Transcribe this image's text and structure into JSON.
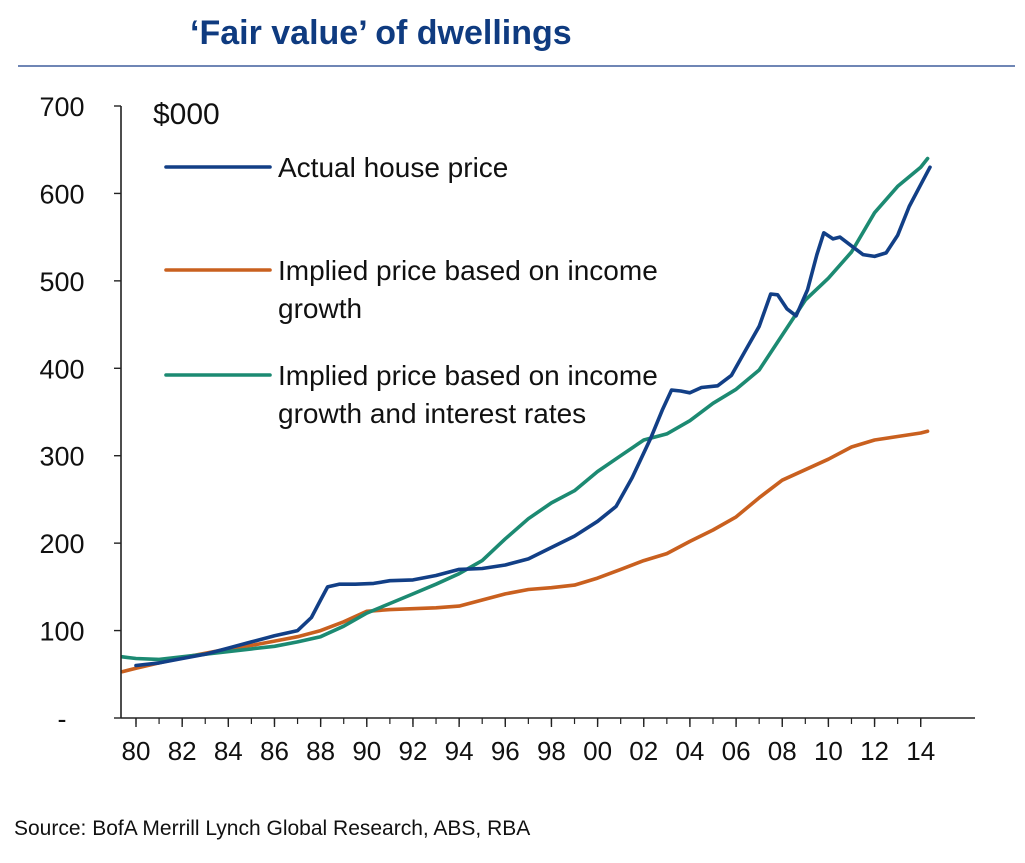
{
  "header": {
    "title": "‘Fair value’ of dwellings"
  },
  "footer": {
    "source": "Source: BofA Merrill Lynch Global Research,  ABS, RBA"
  },
  "chart_data": {
    "type": "line",
    "unit_label": "$000",
    "ylim": [
      0,
      700
    ],
    "y_ticks": [
      {
        "value": 0,
        "label": "-"
      },
      {
        "value": 100,
        "label": "100"
      },
      {
        "value": 200,
        "label": "200"
      },
      {
        "value": 300,
        "label": "300"
      },
      {
        "value": 400,
        "label": "400"
      },
      {
        "value": 500,
        "label": "500"
      },
      {
        "value": 600,
        "label": "600"
      },
      {
        "value": 700,
        "label": "700"
      }
    ],
    "xlim": [
      1979.4,
      2014.9
    ],
    "x_ticks": [
      {
        "value": 1980,
        "label": "80"
      },
      {
        "value": 1982,
        "label": "82"
      },
      {
        "value": 1984,
        "label": "84"
      },
      {
        "value": 1986,
        "label": "86"
      },
      {
        "value": 1988,
        "label": "88"
      },
      {
        "value": 1990,
        "label": "90"
      },
      {
        "value": 1992,
        "label": "92"
      },
      {
        "value": 1994,
        "label": "94"
      },
      {
        "value": 1996,
        "label": "96"
      },
      {
        "value": 1998,
        "label": "98"
      },
      {
        "value": 2000,
        "label": "00"
      },
      {
        "value": 2002,
        "label": "02"
      },
      {
        "value": 2004,
        "label": "04"
      },
      {
        "value": 2006,
        "label": "06"
      },
      {
        "value": 2008,
        "label": "08"
      },
      {
        "value": 2010,
        "label": "10"
      },
      {
        "value": 2012,
        "label": "12"
      },
      {
        "value": 2014,
        "label": "14"
      }
    ],
    "grid": false,
    "legend_position": "top-left",
    "series": [
      {
        "name": "Actual house price",
        "color": "#123f86",
        "points": [
          [
            1980.0,
            60
          ],
          [
            1981.0,
            63
          ],
          [
            1982.0,
            68
          ],
          [
            1983.0,
            73
          ],
          [
            1984.0,
            80
          ],
          [
            1985.0,
            87
          ],
          [
            1986.0,
            94
          ],
          [
            1987.0,
            100
          ],
          [
            1987.6,
            115
          ],
          [
            1988.0,
            135
          ],
          [
            1988.3,
            150
          ],
          [
            1988.8,
            153
          ],
          [
            1989.5,
            153
          ],
          [
            1990.3,
            154
          ],
          [
            1991.0,
            157
          ],
          [
            1992.0,
            158
          ],
          [
            1993.0,
            163
          ],
          [
            1994.0,
            170
          ],
          [
            1995.0,
            171
          ],
          [
            1996.0,
            175
          ],
          [
            1997.0,
            182
          ],
          [
            1998.0,
            195
          ],
          [
            1999.0,
            208
          ],
          [
            2000.0,
            225
          ],
          [
            2000.8,
            242
          ],
          [
            2001.5,
            275
          ],
          [
            2002.3,
            320
          ],
          [
            2002.8,
            352
          ],
          [
            2003.2,
            375
          ],
          [
            2003.6,
            374
          ],
          [
            2004.0,
            372
          ],
          [
            2004.5,
            378
          ],
          [
            2005.2,
            380
          ],
          [
            2005.8,
            392
          ],
          [
            2006.4,
            420
          ],
          [
            2007.0,
            448
          ],
          [
            2007.5,
            485
          ],
          [
            2007.8,
            484
          ],
          [
            2008.2,
            468
          ],
          [
            2008.6,
            460
          ],
          [
            2009.1,
            490
          ],
          [
            2009.5,
            530
          ],
          [
            2009.8,
            555
          ],
          [
            2010.2,
            548
          ],
          [
            2010.5,
            550
          ],
          [
            2011.0,
            540
          ],
          [
            2011.5,
            530
          ],
          [
            2012.0,
            528
          ],
          [
            2012.5,
            532
          ],
          [
            2013.0,
            552
          ],
          [
            2013.5,
            585
          ],
          [
            2014.0,
            610
          ],
          [
            2014.4,
            630
          ]
        ]
      },
      {
        "name": "Implied price based on income growth",
        "color": "#c9601f",
        "points": [
          [
            1979.4,
            53
          ],
          [
            1980.0,
            57
          ],
          [
            1981.0,
            63
          ],
          [
            1982.0,
            69
          ],
          [
            1983.0,
            74
          ],
          [
            1984.0,
            79
          ],
          [
            1985.0,
            83
          ],
          [
            1986.0,
            88
          ],
          [
            1987.0,
            93
          ],
          [
            1988.0,
            100
          ],
          [
            1989.0,
            110
          ],
          [
            1990.0,
            122
          ],
          [
            1991.0,
            124
          ],
          [
            1992.0,
            125
          ],
          [
            1993.0,
            126
          ],
          [
            1994.0,
            128
          ],
          [
            1995.0,
            135
          ],
          [
            1996.0,
            142
          ],
          [
            1997.0,
            147
          ],
          [
            1998.0,
            149
          ],
          [
            1999.0,
            152
          ],
          [
            2000.0,
            160
          ],
          [
            2001.0,
            170
          ],
          [
            2002.0,
            180
          ],
          [
            2003.0,
            188
          ],
          [
            2004.0,
            202
          ],
          [
            2005.0,
            215
          ],
          [
            2006.0,
            230
          ],
          [
            2007.0,
            252
          ],
          [
            2008.0,
            272
          ],
          [
            2009.0,
            284
          ],
          [
            2010.0,
            296
          ],
          [
            2011.0,
            310
          ],
          [
            2012.0,
            318
          ],
          [
            2013.0,
            322
          ],
          [
            2014.0,
            326
          ],
          [
            2014.3,
            328
          ]
        ]
      },
      {
        "name": "Implied price based on income growth and interest rates",
        "color": "#1c8a72",
        "points": [
          [
            1979.4,
            70
          ],
          [
            1980.0,
            68
          ],
          [
            1981.0,
            67
          ],
          [
            1982.0,
            70
          ],
          [
            1983.0,
            73
          ],
          [
            1984.0,
            76
          ],
          [
            1985.0,
            79
          ],
          [
            1986.0,
            82
          ],
          [
            1987.0,
            87
          ],
          [
            1988.0,
            93
          ],
          [
            1989.0,
            105
          ],
          [
            1990.0,
            120
          ],
          [
            1991.0,
            131
          ],
          [
            1992.0,
            142
          ],
          [
            1993.0,
            153
          ],
          [
            1994.0,
            165
          ],
          [
            1995.0,
            180
          ],
          [
            1996.0,
            205
          ],
          [
            1997.0,
            228
          ],
          [
            1998.0,
            246
          ],
          [
            1999.0,
            260
          ],
          [
            2000.0,
            282
          ],
          [
            2001.0,
            300
          ],
          [
            2002.0,
            318
          ],
          [
            2003.0,
            325
          ],
          [
            2004.0,
            340
          ],
          [
            2005.0,
            360
          ],
          [
            2006.0,
            376
          ],
          [
            2007.0,
            398
          ],
          [
            2008.0,
            438
          ],
          [
            2009.0,
            478
          ],
          [
            2010.0,
            503
          ],
          [
            2011.0,
            533
          ],
          [
            2012.0,
            578
          ],
          [
            2013.0,
            608
          ],
          [
            2014.0,
            630
          ],
          [
            2014.3,
            640
          ]
        ]
      }
    ]
  }
}
